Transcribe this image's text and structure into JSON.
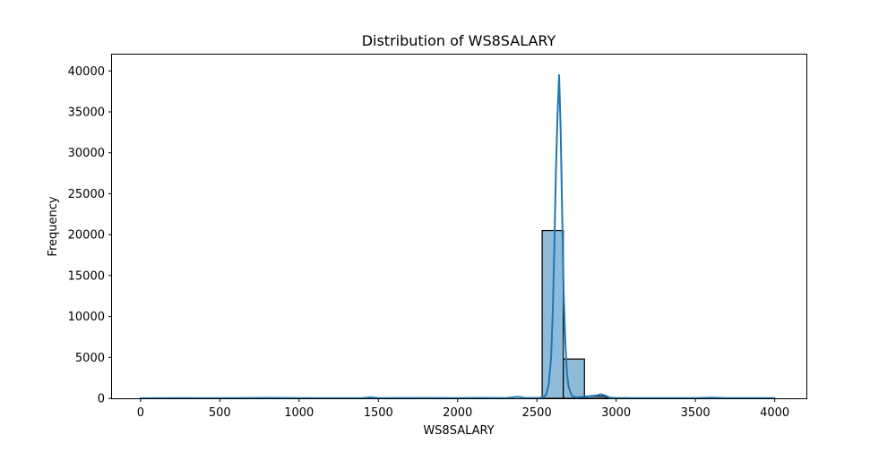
{
  "chart_data": {
    "type": "bar",
    "title": "Distribution of WS8SALARY",
    "xlabel": "WS8SALARY",
    "ylabel": "Frequency",
    "xlim": [
      -180,
      4200
    ],
    "ylim": [
      0,
      42000
    ],
    "xticks": [
      0,
      500,
      1000,
      1500,
      2000,
      2500,
      3000,
      3500,
      4000
    ],
    "xtick_labels": [
      "0",
      "500",
      "1000",
      "1500",
      "2000",
      "2500",
      "3000",
      "3500",
      "4000"
    ],
    "yticks": [
      0,
      5000,
      10000,
      15000,
      20000,
      25000,
      30000,
      35000,
      40000
    ],
    "ytick_labels": [
      "0",
      "5000",
      "10000",
      "15000",
      "20000",
      "25000",
      "30000",
      "35000",
      "40000"
    ],
    "grid": false,
    "bar_color": "#8fbbd9",
    "bar_edge_color": "#000000",
    "kde_color": "#1f77b4",
    "bins": [
      {
        "x0": 2533.3,
        "x1": 2666.7,
        "count": 20500
      },
      {
        "x0": 2666.7,
        "x1": 2800.0,
        "count": 4800
      },
      {
        "x0": 2800.0,
        "x1": 2933.3,
        "count": 250
      },
      {
        "x0": 2933.3,
        "x1": 3066.7,
        "count": 60
      }
    ],
    "kde": {
      "x": [
        0,
        200,
        400,
        600,
        800,
        1000,
        1200,
        1400,
        1450,
        1500,
        1800,
        2000,
        2150,
        2200,
        2300,
        2380,
        2400,
        2420,
        2500,
        2540,
        2560,
        2575,
        2590,
        2600,
        2610,
        2620,
        2630,
        2640,
        2650,
        2660,
        2670,
        2680,
        2690,
        2700,
        2720,
        2750,
        2800,
        2850,
        2880,
        2900,
        2920,
        2940,
        2960,
        3000,
        3200,
        3500,
        3600,
        3700,
        3800,
        4000
      ],
      "y": [
        0,
        20,
        10,
        30,
        60,
        20,
        10,
        30,
        120,
        30,
        40,
        20,
        60,
        40,
        30,
        180,
        130,
        60,
        40,
        100,
        500,
        1800,
        5000,
        10500,
        18500,
        27500,
        34500,
        39500,
        33000,
        22000,
        12000,
        6500,
        3000,
        1400,
        300,
        120,
        200,
        300,
        350,
        500,
        400,
        250,
        80,
        40,
        20,
        30,
        80,
        20,
        30,
        30
      ]
    }
  }
}
